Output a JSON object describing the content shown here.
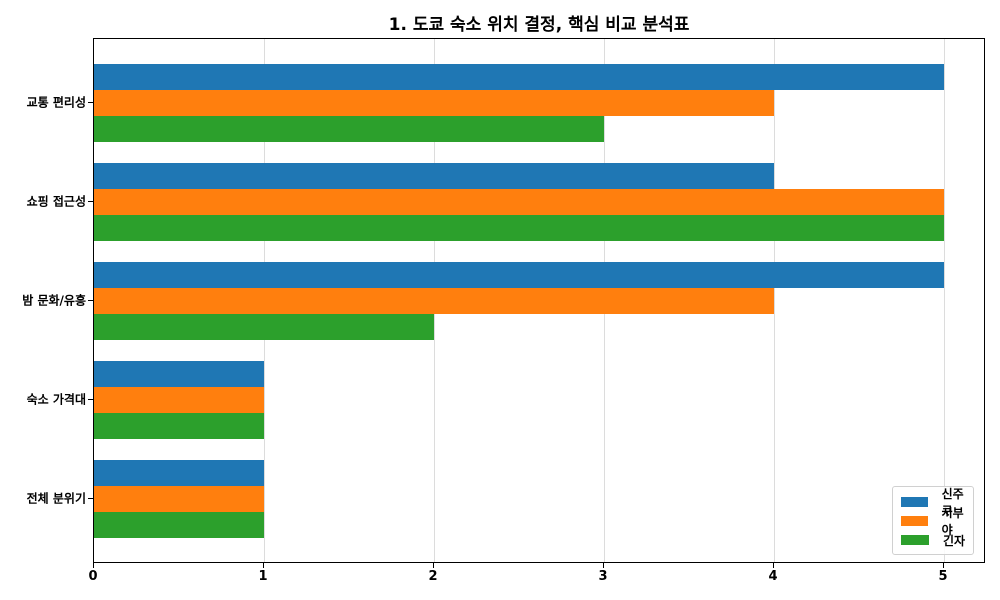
{
  "chart_data": {
    "type": "bar",
    "orientation": "horizontal",
    "title": "1. 도쿄 숙소 위치 결정, 핵심 비교 분석표",
    "xlabel": "",
    "ylabel": "",
    "categories": [
      "교통 편리성",
      "쇼핑 접근성",
      "밤 문화/유흥",
      "숙소 가격대",
      "전체 분위기"
    ],
    "series": [
      {
        "name": "신주쿠",
        "color": "#1f77b4",
        "values": [
          5,
          4,
          5,
          1,
          1
        ]
      },
      {
        "name": "시부야",
        "color": "#ff7f0e",
        "values": [
          4,
          5,
          4,
          1,
          1
        ]
      },
      {
        "name": "긴자",
        "color": "#2ca02c",
        "values": [
          3,
          5,
          2,
          1,
          1
        ]
      }
    ],
    "xlim": [
      0,
      5.25
    ],
    "xticks": [
      "0",
      "1",
      "2",
      "3",
      "4",
      "5"
    ],
    "grid": "x",
    "legend_position": "lower right"
  }
}
